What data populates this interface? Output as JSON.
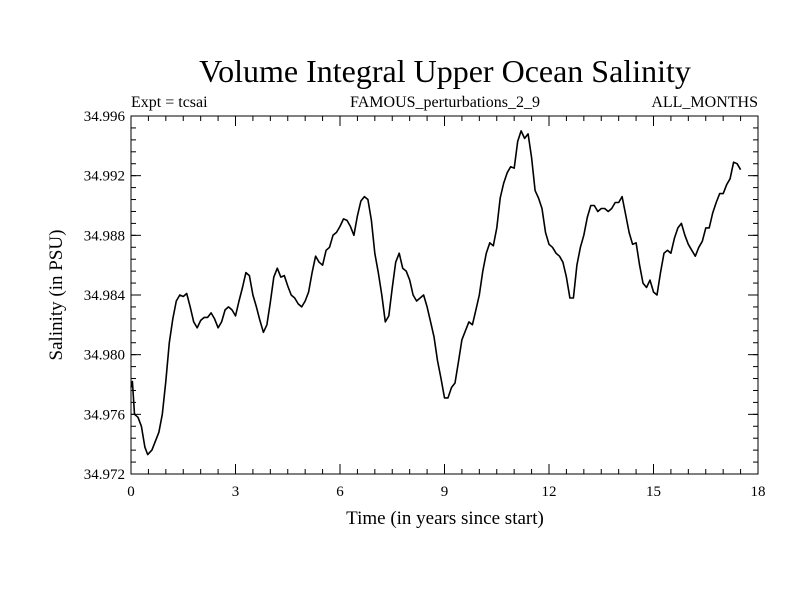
{
  "chart_data": {
    "type": "line",
    "title": "Volume Integral Upper Ocean Salinity",
    "subtitle_left": "Expt = tcsai",
    "subtitle_center": "FAMOUS_perturbations_2_9",
    "subtitle_right": "ALL_MONTHS",
    "xlabel": "Time (in years since start)",
    "ylabel": "Salinity (in PSU)",
    "xlim": [
      0,
      18
    ],
    "ylim": [
      34.972,
      34.996
    ],
    "xticks": [
      0,
      3,
      6,
      9,
      12,
      15,
      18
    ],
    "xtick_labels": [
      "0",
      "3",
      "6",
      "9",
      "12",
      "15",
      "18"
    ],
    "yticks": [
      34.972,
      34.976,
      34.98,
      34.984,
      34.988,
      34.992,
      34.996
    ],
    "ytick_labels": [
      "34.972",
      "34.976",
      "34.980",
      "34.984",
      "34.988",
      "34.992",
      "34.996"
    ],
    "x_minor_step": 0.5,
    "y_minor_step": 0.0008,
    "grid": false,
    "series": [
      {
        "name": "salinity",
        "color": "#000000",
        "points": [
          [
            0.0,
            34.9778
          ],
          [
            0.04,
            34.9782
          ],
          [
            0.1,
            34.976
          ],
          [
            0.2,
            34.9758
          ],
          [
            0.3,
            34.9752
          ],
          [
            0.4,
            34.9738
          ],
          [
            0.48,
            34.9733
          ],
          [
            0.6,
            34.9736
          ],
          [
            0.7,
            34.9742
          ],
          [
            0.8,
            34.9748
          ],
          [
            0.9,
            34.976
          ],
          [
            1.0,
            34.9782
          ],
          [
            1.1,
            34.9808
          ],
          [
            1.2,
            34.9824
          ],
          [
            1.3,
            34.9836
          ],
          [
            1.4,
            34.984
          ],
          [
            1.5,
            34.9839
          ],
          [
            1.6,
            34.9841
          ],
          [
            1.7,
            34.9832
          ],
          [
            1.8,
            34.9822
          ],
          [
            1.9,
            34.9818
          ],
          [
            2.0,
            34.9823
          ],
          [
            2.1,
            34.9825
          ],
          [
            2.2,
            34.9825
          ],
          [
            2.3,
            34.9828
          ],
          [
            2.4,
            34.9824
          ],
          [
            2.5,
            34.9818
          ],
          [
            2.6,
            34.9822
          ],
          [
            2.7,
            34.983
          ],
          [
            2.8,
            34.9832
          ],
          [
            2.9,
            34.983
          ],
          [
            3.0,
            34.9826
          ],
          [
            3.1,
            34.9836
          ],
          [
            3.2,
            34.9845
          ],
          [
            3.3,
            34.9855
          ],
          [
            3.4,
            34.9853
          ],
          [
            3.5,
            34.984
          ],
          [
            3.6,
            34.9832
          ],
          [
            3.7,
            34.9823
          ],
          [
            3.8,
            34.9815
          ],
          [
            3.9,
            34.982
          ],
          [
            4.0,
            34.9835
          ],
          [
            4.1,
            34.9852
          ],
          [
            4.2,
            34.9858
          ],
          [
            4.3,
            34.9852
          ],
          [
            4.4,
            34.9853
          ],
          [
            4.5,
            34.9846
          ],
          [
            4.6,
            34.984
          ],
          [
            4.7,
            34.9838
          ],
          [
            4.8,
            34.9834
          ],
          [
            4.9,
            34.9832
          ],
          [
            5.0,
            34.9836
          ],
          [
            5.1,
            34.9842
          ],
          [
            5.2,
            34.9855
          ],
          [
            5.3,
            34.9866
          ],
          [
            5.4,
            34.9862
          ],
          [
            5.5,
            34.986
          ],
          [
            5.6,
            34.987
          ],
          [
            5.7,
            34.9872
          ],
          [
            5.8,
            34.988
          ],
          [
            5.9,
            34.9882
          ],
          [
            6.0,
            34.9886
          ],
          [
            6.1,
            34.9891
          ],
          [
            6.2,
            34.989
          ],
          [
            6.3,
            34.9886
          ],
          [
            6.4,
            34.988
          ],
          [
            6.5,
            34.9893
          ],
          [
            6.6,
            34.9903
          ],
          [
            6.7,
            34.9906
          ],
          [
            6.8,
            34.9904
          ],
          [
            6.9,
            34.989
          ],
          [
            7.0,
            34.9868
          ],
          [
            7.1,
            34.9855
          ],
          [
            7.2,
            34.984
          ],
          [
            7.3,
            34.9822
          ],
          [
            7.4,
            34.9826
          ],
          [
            7.5,
            34.9845
          ],
          [
            7.6,
            34.9862
          ],
          [
            7.7,
            34.9868
          ],
          [
            7.8,
            34.9858
          ],
          [
            7.9,
            34.9856
          ],
          [
            8.0,
            34.985
          ],
          [
            8.1,
            34.984
          ],
          [
            8.2,
            34.9836
          ],
          [
            8.3,
            34.9838
          ],
          [
            8.4,
            34.984
          ],
          [
            8.5,
            34.9832
          ],
          [
            8.6,
            34.9822
          ],
          [
            8.7,
            34.9812
          ],
          [
            8.8,
            34.9796
          ],
          [
            8.9,
            34.9784
          ],
          [
            9.0,
            34.9771
          ],
          [
            9.1,
            34.9771
          ],
          [
            9.2,
            34.9778
          ],
          [
            9.3,
            34.9781
          ],
          [
            9.4,
            34.9795
          ],
          [
            9.5,
            34.981
          ],
          [
            9.6,
            34.9816
          ],
          [
            9.7,
            34.9822
          ],
          [
            9.8,
            34.982
          ],
          [
            9.9,
            34.983
          ],
          [
            10.0,
            34.984
          ],
          [
            10.1,
            34.9856
          ],
          [
            10.2,
            34.9868
          ],
          [
            10.3,
            34.9875
          ],
          [
            10.4,
            34.9873
          ],
          [
            10.5,
            34.9885
          ],
          [
            10.6,
            34.9905
          ],
          [
            10.7,
            34.9915
          ],
          [
            10.8,
            34.9922
          ],
          [
            10.9,
            34.9926
          ],
          [
            11.0,
            34.9925
          ],
          [
            11.1,
            34.9943
          ],
          [
            11.2,
            34.995
          ],
          [
            11.3,
            34.9945
          ],
          [
            11.4,
            34.9948
          ],
          [
            11.5,
            34.9932
          ],
          [
            11.6,
            34.991
          ],
          [
            11.7,
            34.9905
          ],
          [
            11.8,
            34.9898
          ],
          [
            11.9,
            34.9882
          ],
          [
            12.0,
            34.9874
          ],
          [
            12.1,
            34.9872
          ],
          [
            12.2,
            34.9868
          ],
          [
            12.3,
            34.9866
          ],
          [
            12.4,
            34.9862
          ],
          [
            12.5,
            34.9852
          ],
          [
            12.6,
            34.9838
          ],
          [
            12.7,
            34.9838
          ],
          [
            12.8,
            34.986
          ],
          [
            12.9,
            34.9872
          ],
          [
            13.0,
            34.988
          ],
          [
            13.1,
            34.9892
          ],
          [
            13.2,
            34.99
          ],
          [
            13.3,
            34.99
          ],
          [
            13.4,
            34.9896
          ],
          [
            13.5,
            34.9898
          ],
          [
            13.6,
            34.9898
          ],
          [
            13.7,
            34.9896
          ],
          [
            13.8,
            34.9898
          ],
          [
            13.9,
            34.9902
          ],
          [
            14.0,
            34.9902
          ],
          [
            14.1,
            34.9906
          ],
          [
            14.2,
            34.9894
          ],
          [
            14.3,
            34.9882
          ],
          [
            14.4,
            34.9874
          ],
          [
            14.5,
            34.9875
          ],
          [
            14.6,
            34.986
          ],
          [
            14.7,
            34.9848
          ],
          [
            14.8,
            34.9845
          ],
          [
            14.9,
            34.985
          ],
          [
            15.0,
            34.9842
          ],
          [
            15.1,
            34.984
          ],
          [
            15.2,
            34.9855
          ],
          [
            15.3,
            34.9868
          ],
          [
            15.4,
            34.987
          ],
          [
            15.5,
            34.9868
          ],
          [
            15.6,
            34.9878
          ],
          [
            15.7,
            34.9885
          ],
          [
            15.8,
            34.9888
          ],
          [
            15.9,
            34.988
          ],
          [
            16.0,
            34.9874
          ],
          [
            16.1,
            34.987
          ],
          [
            16.2,
            34.9866
          ],
          [
            16.3,
            34.9872
          ],
          [
            16.4,
            34.9876
          ],
          [
            16.5,
            34.9885
          ],
          [
            16.6,
            34.9885
          ],
          [
            16.7,
            34.9895
          ],
          [
            16.8,
            34.9902
          ],
          [
            16.9,
            34.9908
          ],
          [
            17.0,
            34.9908
          ],
          [
            17.1,
            34.9914
          ],
          [
            17.2,
            34.9918
          ],
          [
            17.3,
            34.9929
          ],
          [
            17.4,
            34.9928
          ],
          [
            17.5,
            34.9924
          ]
        ]
      }
    ]
  }
}
